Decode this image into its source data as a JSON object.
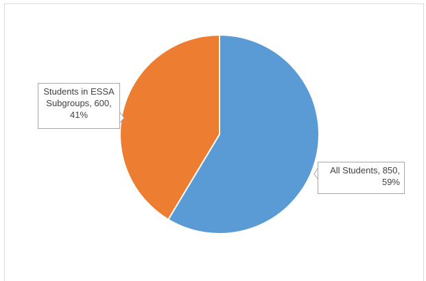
{
  "chart_data": {
    "type": "pie",
    "title": "",
    "series": [
      {
        "values": [
          850,
          600
        ],
        "categories": [
          "All Students",
          "Students in ESSA Subgroups"
        ],
        "percent_labels": [
          "59%",
          "41%"
        ],
        "colors": [
          "#5b9bd5",
          "#ed7d31"
        ]
      }
    ],
    "slices": [
      {
        "label": "All Students",
        "value": 850,
        "percent": "59%",
        "color": "#5b9bd5",
        "data_label_line1": "All Students, 850,",
        "data_label_line2": "59%"
      },
      {
        "label": "Students in ESSA Subgroups",
        "value": 600,
        "percent": "41%",
        "color": "#ed7d31",
        "data_label_line1": "Students in ESSA",
        "data_label_line2": "Subgroups, 600,",
        "data_label_line3": "41%"
      }
    ],
    "start_angle": "12 o'clock",
    "direction": "clockwise",
    "legend": "none",
    "data_labels": "callouts"
  }
}
